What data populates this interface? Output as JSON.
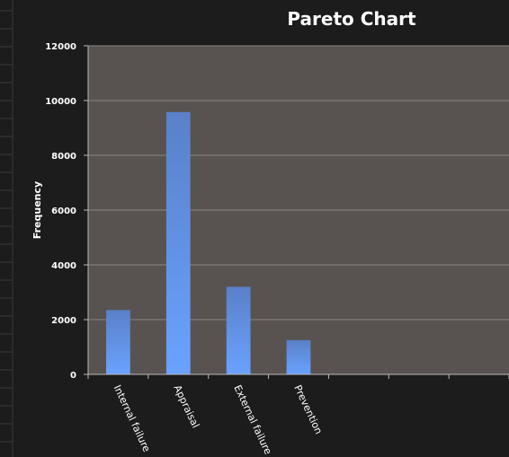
{
  "chart_data": {
    "type": "bar",
    "title": "Pareto Chart",
    "ylabel": "Frequency",
    "xlabel": "",
    "categories": [
      "Internal failure",
      "Appraisal",
      "External failure",
      "Prevention"
    ],
    "empty_category_slots": 3,
    "values": [
      2350,
      9580,
      3200,
      1250
    ],
    "ylim": [
      0,
      12000
    ],
    "yticks": [
      0,
      2000,
      4000,
      6000,
      8000,
      10000,
      12000
    ],
    "grid": true,
    "legend": "none"
  },
  "colors": {
    "background": "#1c1c1c",
    "plot_area": "#585350",
    "gridline": "#8a8582",
    "axis": "#b8b8b8",
    "bar_top": "#5a80c8",
    "bar_bottom": "#6aa2ff",
    "text": "#ffffff"
  }
}
